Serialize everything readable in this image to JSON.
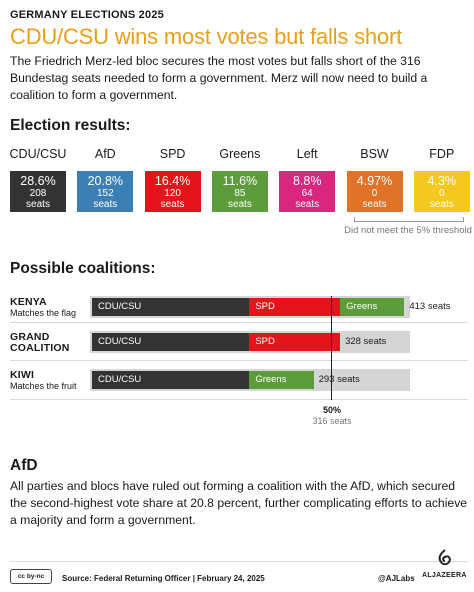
{
  "header": {
    "kicker": "GERMANY ELECTIONS 2025",
    "title": "CDU/CSU wins most votes but falls short",
    "intro": "The Friedrich Merz-led bloc secures the most votes but falls short of the 316 Bundestag seats needed to form a government. Merz will now need to build a coalition to form a government."
  },
  "results_heading": "Election results:",
  "threshold_note": "Did not meet the 5% threshold",
  "coalitions_heading": "Possible coalitions:",
  "majority": {
    "pct_label": "50%",
    "seats_label": "316 seats",
    "seats": 316
  },
  "afd_section": {
    "heading": "AfD",
    "body": "All parties and blocs have ruled out forming a coalition with the AfD, which secured the second-highest vote share at 20.8 percent, further complicating efforts to achieve a majority and form a government."
  },
  "footer": {
    "license": "cc by-nc",
    "source": "Source: Federal Returning Officer  |  February 24, 2025",
    "handle": "@AJLabs",
    "brand": "ALJAZEERA"
  },
  "colors": {
    "headline": "#e8a01b",
    "cdu": "#333333",
    "afd": "#3b7fb5",
    "spd": "#e3151b",
    "greens": "#5d9c3a",
    "left": "#d9267e",
    "bsw": "#e17328",
    "fdp": "#f4c81f",
    "track": "#d5d5d5"
  },
  "chart_data": [
    {
      "type": "table",
      "categories": [
        "CDU/CSU",
        "AfD",
        "SPD",
        "Greens",
        "Left",
        "BSW",
        "FDP"
      ],
      "vote_share_labels": [
        "28.6%",
        "20.8%",
        "16.4%",
        "11.6%",
        "8.8%",
        "4.97%",
        "4.3%"
      ],
      "vote_share": [
        28.6,
        20.8,
        16.4,
        11.6,
        8.8,
        4.97,
        4.3
      ],
      "seats": [
        208,
        152,
        120,
        85,
        64,
        0,
        0
      ],
      "seats_unit": "seats",
      "colors": [
        "#333333",
        "#3b7fb5",
        "#e3151b",
        "#5d9c3a",
        "#d9267e",
        "#e17328",
        "#f4c81f"
      ]
    },
    {
      "type": "bar",
      "stacked": true,
      "orientation": "horizontal",
      "categories": [
        "KENYA",
        "GRAND COALITION",
        "KIWI"
      ],
      "subtitles": [
        "Matches the flag",
        "",
        "Matches the fruit"
      ],
      "series": [
        {
          "name": "CDU/CSU",
          "values": [
            208,
            208,
            208
          ],
          "color": "#333333"
        },
        {
          "name": "SPD",
          "values": [
            120,
            120,
            0
          ],
          "color": "#e3151b"
        },
        {
          "name": "Greens",
          "values": [
            85,
            0,
            85
          ],
          "color": "#5d9c3a"
        }
      ],
      "totals": [
        413,
        328,
        293
      ],
      "total_labels": [
        "413 seats",
        "328 seats",
        "293 seats"
      ],
      "xlim": [
        0,
        416
      ],
      "reference_line": {
        "value": 316,
        "label": "50%",
        "sublabel": "316 seats"
      }
    }
  ]
}
